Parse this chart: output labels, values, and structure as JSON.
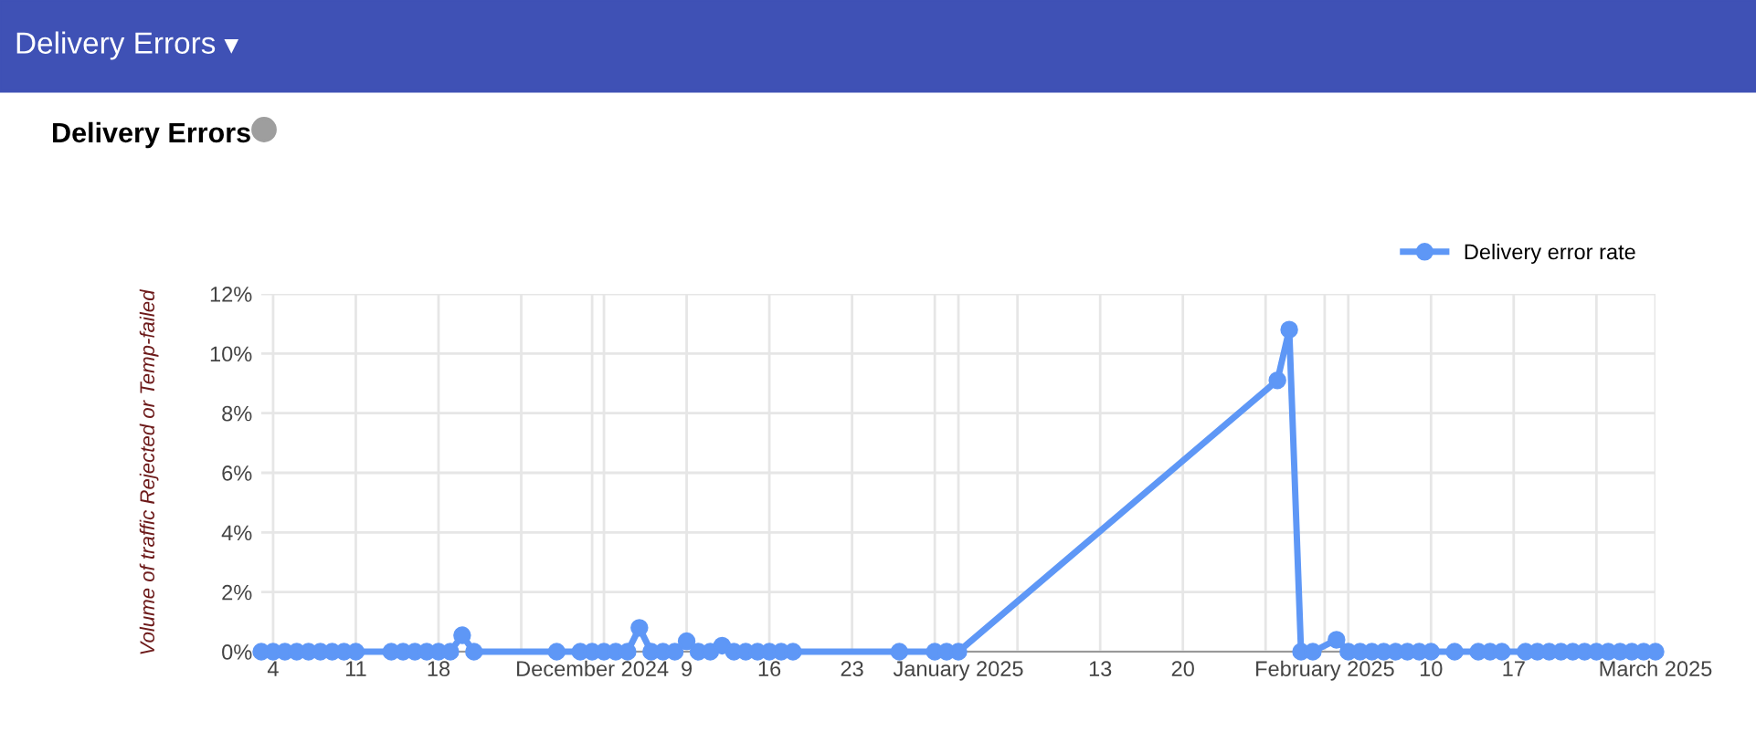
{
  "chart_data": {
    "type": "line",
    "title": "Delivery Errors",
    "ylabel": "Volume of traffic Rejected or Temp-failed",
    "annotations": [
      "Delivery Errors"
    ],
    "series": [
      {
        "name": "Delivery error rate",
        "color": "#5e97f6",
        "x": [
          "2024-11-03",
          "2024-11-04",
          "2024-11-05",
          "2024-11-06",
          "2024-11-07",
          "2024-11-08",
          "2024-11-09",
          "2024-11-10",
          "2024-11-11",
          "2024-11-14",
          "2024-11-15",
          "2024-11-16",
          "2024-11-17",
          "2024-11-18",
          "2024-11-19",
          "2024-11-20",
          "2024-11-21",
          "2024-11-28",
          "2024-11-30",
          "2024-12-01",
          "2024-12-02",
          "2024-12-03",
          "2024-12-04",
          "2024-12-05",
          "2024-12-06",
          "2024-12-07",
          "2024-12-08",
          "2024-12-09",
          "2024-12-10",
          "2024-12-11",
          "2024-12-12",
          "2024-12-13",
          "2024-12-14",
          "2024-12-15",
          "2024-12-16",
          "2024-12-17",
          "2024-12-18",
          "2024-12-27",
          "2024-12-30",
          "2024-12-31",
          "2025-01-01",
          "2025-01-28",
          "2025-01-29",
          "2025-01-30",
          "2025-01-31",
          "2025-02-02",
          "2025-02-03",
          "2025-02-04",
          "2025-02-05",
          "2025-02-06",
          "2025-02-07",
          "2025-02-08",
          "2025-02-09",
          "2025-02-10",
          "2025-02-12",
          "2025-02-14",
          "2025-02-15",
          "2025-02-16",
          "2025-02-18",
          "2025-02-19",
          "2025-02-20",
          "2025-02-21",
          "2025-02-22",
          "2025-02-23",
          "2025-02-24",
          "2025-02-25",
          "2025-02-26",
          "2025-02-27",
          "2025-02-28",
          "2025-03-01"
        ],
        "values": [
          0,
          0,
          0,
          0,
          0,
          0,
          0,
          0,
          0,
          0,
          0,
          0,
          0,
          0,
          0,
          0.55,
          0,
          0,
          0,
          0,
          0,
          0,
          0,
          0.8,
          0,
          0,
          0,
          0.35,
          0,
          0,
          0.2,
          0,
          0,
          0,
          0,
          0,
          0,
          0,
          0,
          0,
          0,
          9.1,
          10.8,
          0,
          0,
          0.4,
          0,
          0,
          0,
          0,
          0,
          0,
          0,
          0,
          0,
          0,
          0,
          0,
          0,
          0,
          0,
          0,
          0,
          0,
          0,
          0,
          0,
          0,
          0,
          0
        ]
      }
    ],
    "xlim": [
      "2024-11-03",
      "2025-03-01"
    ],
    "xticks": [
      {
        "value": "2024-11-04",
        "label": "4"
      },
      {
        "value": "2024-11-11",
        "label": "11"
      },
      {
        "value": "2024-11-18",
        "label": "18"
      },
      {
        "value": "2024-11-25",
        "label": null
      },
      {
        "value": "2024-12-01",
        "label": "December 2024"
      },
      {
        "value": "2024-12-02",
        "label": null
      },
      {
        "value": "2024-12-09",
        "label": "9"
      },
      {
        "value": "2024-12-16",
        "label": "16"
      },
      {
        "value": "2024-12-23",
        "label": "23"
      },
      {
        "value": "2024-12-30",
        "label": null
      },
      {
        "value": "2025-01-01",
        "label": "January 2025"
      },
      {
        "value": "2025-01-06",
        "label": null
      },
      {
        "value": "2025-01-13",
        "label": "13"
      },
      {
        "value": "2025-01-20",
        "label": "20"
      },
      {
        "value": "2025-01-27",
        "label": null
      },
      {
        "value": "2025-02-01",
        "label": "February 2025"
      },
      {
        "value": "2025-02-03",
        "label": null
      },
      {
        "value": "2025-02-10",
        "label": "10"
      },
      {
        "value": "2025-02-17",
        "label": "17"
      },
      {
        "value": "2025-02-24",
        "label": null
      },
      {
        "value": "2025-03-01",
        "label": "March 2025"
      }
    ],
    "ylim": [
      0,
      12
    ],
    "yticks": [
      {
        "value": 0,
        "label": "0%"
      },
      {
        "value": 2,
        "label": "2%"
      },
      {
        "value": 4,
        "label": "4%"
      },
      {
        "value": 6,
        "label": "6%"
      },
      {
        "value": 8,
        "label": "8%"
      },
      {
        "value": 10,
        "label": "10%"
      },
      {
        "value": 12,
        "label": "12%"
      }
    ],
    "grid": true,
    "legend": "top right",
    "marker": "circle",
    "line_style": "solid"
  }
}
